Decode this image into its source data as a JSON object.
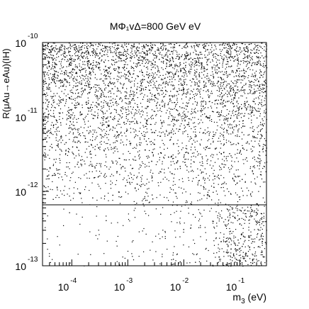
{
  "chart_data": {
    "type": "scatter",
    "title": "MΦ₁vΔ=800 GeV eV",
    "xlabel": "m₃ (eV)",
    "ylabel": "R(μAu→eAu)(IH)",
    "x_scale": "log",
    "y_scale": "log",
    "xlim": [
      3e-05,
      0.3
    ],
    "ylim": [
      1e-13,
      1e-10
    ],
    "x_ticks": [
      {
        "base": "10",
        "exp": "-4",
        "value": 0.0001
      },
      {
        "base": "10",
        "exp": "-3",
        "value": 0.001
      },
      {
        "base": "10",
        "exp": "-2",
        "value": 0.01
      },
      {
        "base": "10",
        "exp": "-1",
        "value": 0.1
      }
    ],
    "y_ticks": [
      {
        "base": "10",
        "exp": "-13",
        "value": 1e-13
      },
      {
        "base": "10",
        "exp": "-12",
        "value": 1e-12
      },
      {
        "base": "10",
        "exp": "-11",
        "value": 1e-11
      },
      {
        "base": "10",
        "exp": "-10",
        "value": 1e-10
      }
    ],
    "reference_line_y": 6.6e-13,
    "density_profile": {
      "x_log_breaks": [
        -4.5,
        -3.5,
        -2.5,
        -1.5,
        -0.52
      ],
      "upper_band_density": [
        1.0,
        1.0,
        1.0,
        1.0
      ],
      "lower_band_density": [
        0.15,
        0.12,
        0.3,
        1.0
      ]
    },
    "grid": false,
    "legend": "none"
  }
}
